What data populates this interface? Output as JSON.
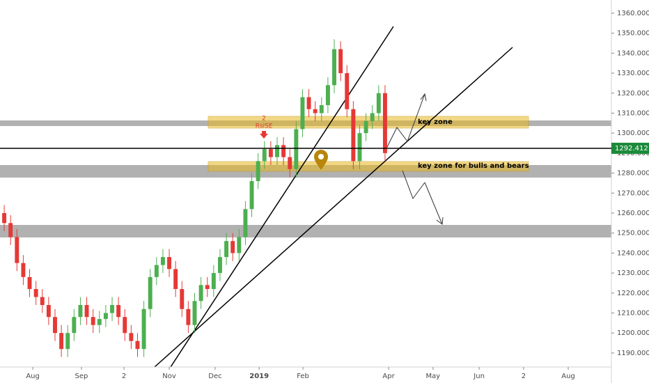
{
  "chart_data": {
    "type": "candlestick",
    "x": [
      0,
      3,
      6,
      9,
      12,
      15,
      18,
      21,
      24,
      27,
      30,
      33,
      36,
      39,
      42,
      45,
      48,
      51,
      54,
      57,
      60,
      63,
      66,
      69,
      72,
      75,
      78,
      81,
      84,
      87,
      90,
      93,
      96,
      99,
      102,
      105,
      108,
      111,
      114,
      117,
      120,
      123,
      126,
      129,
      132,
      135,
      138,
      141,
      144,
      147,
      150,
      153,
      156,
      159,
      162,
      165,
      168,
      171,
      174,
      177,
      180
    ],
    "open": [
      1260,
      1255,
      1248,
      1235,
      1228,
      1222,
      1218,
      1214,
      1208,
      1200,
      1192,
      1200,
      1208,
      1214,
      1208,
      1204,
      1207,
      1210,
      1214,
      1208,
      1200,
      1196,
      1192,
      1212,
      1228,
      1234,
      1238,
      1232,
      1222,
      1212,
      1204,
      1216,
      1224,
      1222,
      1230,
      1238,
      1246,
      1240,
      1248,
      1262,
      1276,
      1286,
      1292,
      1288,
      1294,
      1288,
      1282,
      1302,
      1318,
      1312,
      1310,
      1314,
      1324,
      1342,
      1330,
      1312,
      1286,
      1300,
      1306,
      1310,
      1320
    ],
    "high": [
      1264,
      1259,
      1252,
      1239,
      1232,
      1226,
      1222,
      1218,
      1212,
      1204,
      1204,
      1212,
      1218,
      1218,
      1212,
      1211,
      1214,
      1218,
      1218,
      1212,
      1204,
      1200,
      1216,
      1232,
      1238,
      1242,
      1242,
      1236,
      1226,
      1216,
      1220,
      1228,
      1228,
      1234,
      1242,
      1250,
      1250,
      1252,
      1266,
      1280,
      1290,
      1296,
      1296,
      1298,
      1298,
      1292,
      1306,
      1322,
      1322,
      1316,
      1318,
      1328,
      1347,
      1346,
      1334,
      1316,
      1304,
      1310,
      1314,
      1324,
      1324
    ],
    "low": [
      1251,
      1244,
      1231,
      1224,
      1218,
      1214,
      1210,
      1204,
      1196,
      1188,
      1188,
      1196,
      1204,
      1204,
      1200,
      1200,
      1203,
      1206,
      1204,
      1196,
      1192,
      1188,
      1188,
      1208,
      1224,
      1230,
      1228,
      1218,
      1208,
      1200,
      1200,
      1212,
      1218,
      1218,
      1226,
      1234,
      1236,
      1236,
      1244,
      1258,
      1272,
      1282,
      1284,
      1284,
      1284,
      1278,
      1278,
      1298,
      1308,
      1306,
      1306,
      1310,
      1320,
      1326,
      1308,
      1282,
      1282,
      1296,
      1302,
      1306,
      1286
    ],
    "close": [
      1255,
      1248,
      1235,
      1228,
      1222,
      1218,
      1214,
      1208,
      1200,
      1192,
      1200,
      1208,
      1214,
      1208,
      1204,
      1207,
      1210,
      1214,
      1208,
      1200,
      1196,
      1192,
      1212,
      1228,
      1234,
      1238,
      1232,
      1222,
      1212,
      1204,
      1216,
      1224,
      1222,
      1230,
      1238,
      1246,
      1240,
      1248,
      1262,
      1276,
      1286,
      1292,
      1288,
      1294,
      1288,
      1282,
      1302,
      1318,
      1312,
      1310,
      1314,
      1324,
      1342,
      1330,
      1312,
      1286,
      1300,
      1306,
      1310,
      1320,
      1290
    ],
    "up_color": "#4caf50",
    "down_color": "#e53935",
    "xlim": [
      -2,
      287
    ],
    "ylim": [
      1183,
      1366.6
    ],
    "xticks": [
      {
        "value": 13.5,
        "label": "Aug"
      },
      {
        "value": 36.5,
        "label": "Sep"
      },
      {
        "value": 56.6,
        "label": "2"
      },
      {
        "value": 78,
        "label": "Nov"
      },
      {
        "value": 99.7,
        "label": "Dec"
      },
      {
        "value": 120.5,
        "label": "2019"
      },
      {
        "value": 141.2,
        "label": "Feb"
      },
      {
        "value": 181.7,
        "label": "Apr"
      },
      {
        "value": 202.7,
        "label": "May"
      },
      {
        "value": 224.5,
        "label": "Jun"
      },
      {
        "value": 245.5,
        "label": "2"
      },
      {
        "value": 266.6,
        "label": "Aug"
      }
    ],
    "yticks": [
      {
        "value": 1190,
        "label": "1190.000"
      },
      {
        "value": 1200,
        "label": "1200.000"
      },
      {
        "value": 1210,
        "label": "1210.000"
      },
      {
        "value": 1220,
        "label": "1220.000"
      },
      {
        "value": 1230,
        "label": "1230.000"
      },
      {
        "value": 1240,
        "label": "1240.000"
      },
      {
        "value": 1250,
        "label": "1250.000"
      },
      {
        "value": 1260,
        "label": "1260.000"
      },
      {
        "value": 1270,
        "label": "1270.000"
      },
      {
        "value": 1280,
        "label": "1280.000"
      },
      {
        "value": 1290,
        "label": "1290.000"
      },
      {
        "value": 1300,
        "label": "1300.000"
      },
      {
        "value": 1310,
        "label": "1310.000"
      },
      {
        "value": 1320,
        "label": "1320.000"
      },
      {
        "value": 1330,
        "label": "1330.000"
      },
      {
        "value": 1340,
        "label": "1340.000"
      },
      {
        "value": 1350,
        "label": "1350.000"
      },
      {
        "value": 1360,
        "label": "1360.000"
      }
    ],
    "last_price": 1292.412,
    "last_price_color": "#1b8a3a",
    "annotations": [
      "key zone",
      "key zone for bulls and bears",
      "2",
      "RsiSE"
    ]
  }
}
